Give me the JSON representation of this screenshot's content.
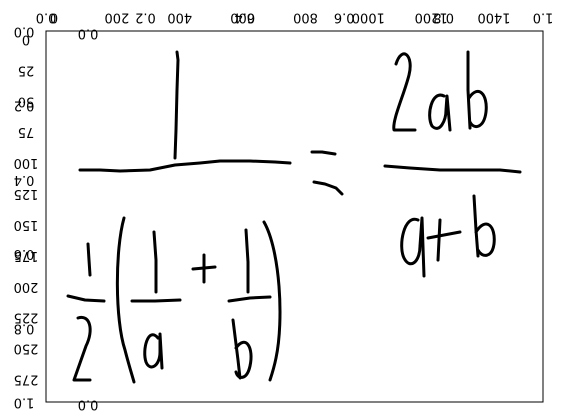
{
  "figure": {
    "background": "#ffffff",
    "ink_color": "#000000",
    "handwriting_note": "handwritten equation: 1 / (1/2 (1/a + 1/b)) = 2ab / (a+b)",
    "top_axis_a": [
      "0.0",
      "0.2",
      "0.4",
      "0.6",
      "0.8",
      "1.0"
    ],
    "top_axis_b": [
      "0",
      "200",
      "400",
      "600",
      "800",
      "1000",
      "1200",
      "1400"
    ],
    "left_axis_a": [
      "0.0",
      "0.2",
      "0.4",
      "0.6",
      "0.8",
      "1.0"
    ],
    "left_axis_b": [
      "0",
      "25",
      "50",
      "75",
      "100",
      "125",
      "150",
      "175",
      "200",
      "225",
      "250",
      "275"
    ],
    "top_extra": [
      "0.0",
      "1.0"
    ],
    "bottom_extra": [
      "0.0"
    ]
  }
}
